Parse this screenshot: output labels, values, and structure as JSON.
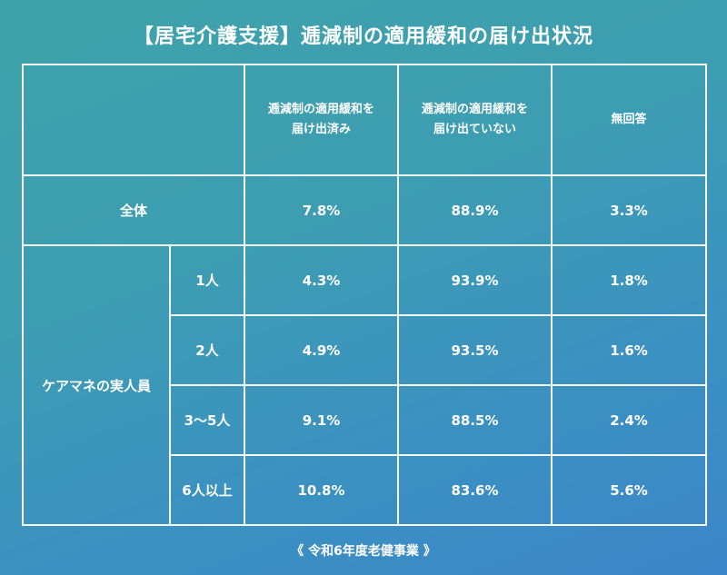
{
  "title": "【居宅介護支援】逓減制の適用緩和の届け出状況",
  "columns": {
    "submitted": "逓減制の適用緩和を\n届け出済み",
    "not_submitted": "逓減制の適用緩和を\n届け出ていない",
    "no_answer": "無回答"
  },
  "overall": {
    "label": "全体",
    "submitted": "7.8%",
    "not_submitted": "88.9%",
    "no_answer": "3.3%"
  },
  "group": {
    "label": "ケアマネの実人員",
    "rows": [
      {
        "label": "1人",
        "submitted": "4.3%",
        "not_submitted": "93.9%",
        "no_answer": "1.8%"
      },
      {
        "label": "2人",
        "submitted": "4.9%",
        "not_submitted": "93.5%",
        "no_answer": "1.6%"
      },
      {
        "label": "3〜5人",
        "submitted": "9.1%",
        "not_submitted": "88.5%",
        "no_answer": "2.4%"
      },
      {
        "label": "6人以上",
        "submitted": "10.8%",
        "not_submitted": "83.6%",
        "no_answer": "5.6%"
      }
    ]
  },
  "source": "《 令和6年度老健事業 》"
}
